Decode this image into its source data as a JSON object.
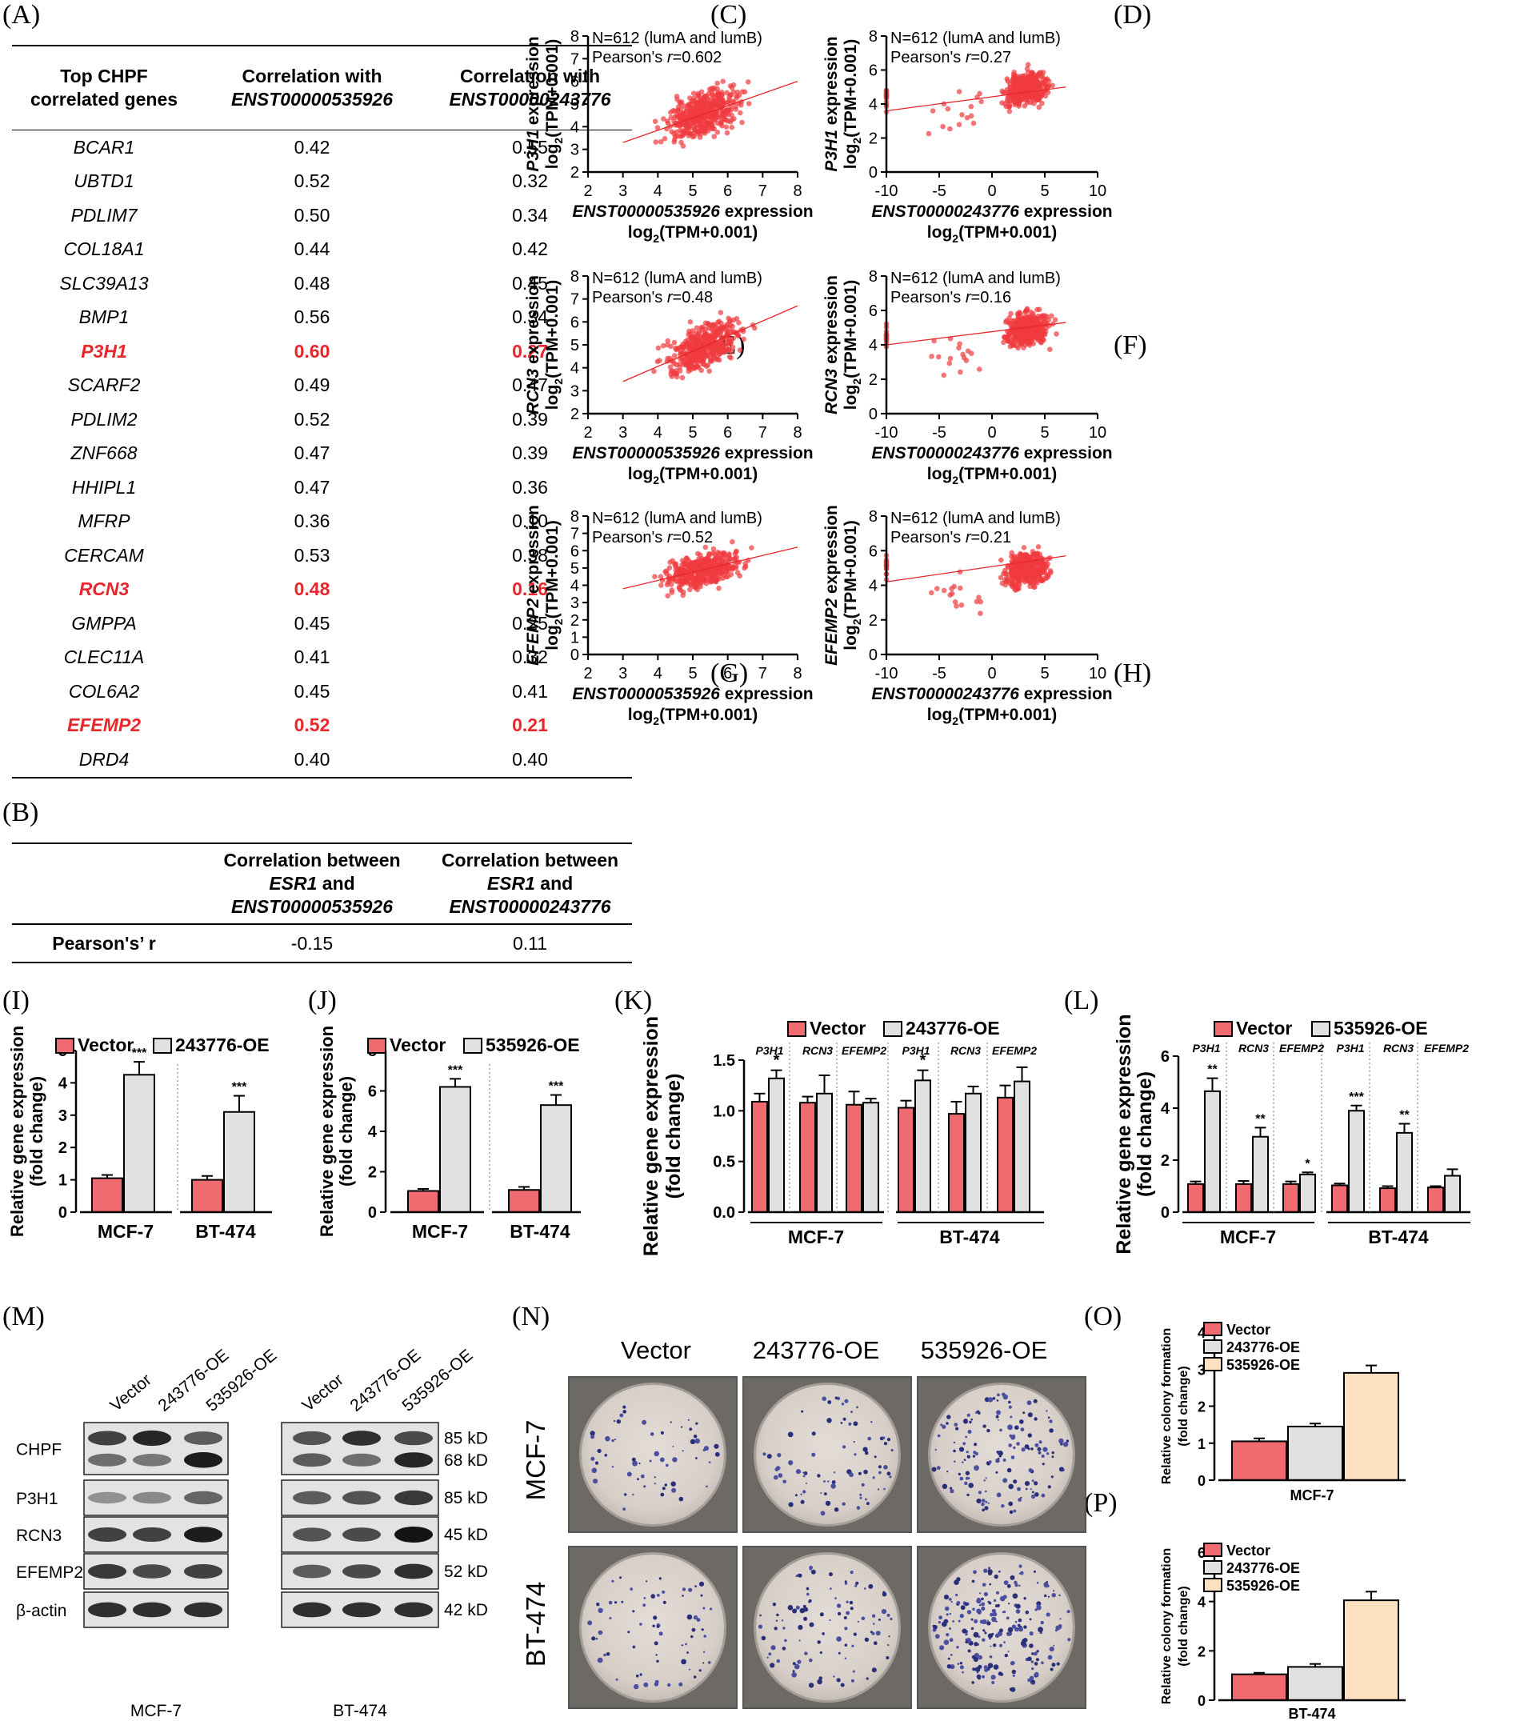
{
  "panels": {
    "A": "(A)",
    "B": "(B)",
    "C": "(C)",
    "D": "(D)",
    "E": "(E)",
    "F": "(F)",
    "G": "(G)",
    "H": "(H)",
    "I": "(I)",
    "J": "(J)",
    "K": "(K)",
    "L": "(L)",
    "M": "(M)",
    "N": "(N)",
    "O": "(O)",
    "P": "(P)"
  },
  "tableA": {
    "h1a": "Top CHPF",
    "h1b": "correlated genes",
    "h2a": "Correlation with",
    "h2b": "ENST00000535926",
    "h3a": "Correlation with",
    "h3b": "ENST00000243776",
    "rows": [
      {
        "gene": "BCAR1",
        "c1": "0.42",
        "c2": "0.55",
        "hl": false
      },
      {
        "gene": "UBTD1",
        "c1": "0.52",
        "c2": "0.32",
        "hl": false
      },
      {
        "gene": "PDLIM7",
        "c1": "0.50",
        "c2": "0.34",
        "hl": false
      },
      {
        "gene": "COL18A1",
        "c1": "0.44",
        "c2": "0.42",
        "hl": false
      },
      {
        "gene": "SLC39A13",
        "c1": "0.48",
        "c2": "0.45",
        "hl": false
      },
      {
        "gene": "BMP1",
        "c1": "0.56",
        "c2": "0.34",
        "hl": false
      },
      {
        "gene": "P3H1",
        "c1": "0.60",
        "c2": "0.27",
        "hl": true
      },
      {
        "gene": "SCARF2",
        "c1": "0.49",
        "c2": "0.47",
        "hl": false
      },
      {
        "gene": "PDLIM2",
        "c1": "0.52",
        "c2": "0.39",
        "hl": false
      },
      {
        "gene": "ZNF668",
        "c1": "0.47",
        "c2": "0.39",
        "hl": false
      },
      {
        "gene": "HHIPL1",
        "c1": "0.47",
        "c2": "0.36",
        "hl": false
      },
      {
        "gene": "MFRP",
        "c1": "0.36",
        "c2": "0.10",
        "hl": false
      },
      {
        "gene": "CERCAM",
        "c1": "0.53",
        "c2": "0.38",
        "hl": false
      },
      {
        "gene": "RCN3",
        "c1": "0.48",
        "c2": "0.16",
        "hl": true
      },
      {
        "gene": "GMPPA",
        "c1": "0.45",
        "c2": "0.25",
        "hl": false
      },
      {
        "gene": "CLEC11A",
        "c1": "0.41",
        "c2": "0.32",
        "hl": false
      },
      {
        "gene": "COL6A2",
        "c1": "0.45",
        "c2": "0.41",
        "hl": false
      },
      {
        "gene": "EFEMP2",
        "c1": "0.52",
        "c2": "0.21",
        "hl": true
      },
      {
        "gene": "DRD4",
        "c1": "0.40",
        "c2": "0.40",
        "hl": false
      }
    ]
  },
  "tableB": {
    "h2a": "Correlation between",
    "h2b": "ESR1",
    "h2c": "and",
    "h2d": "ENST00000535926",
    "h3a": "Correlation between",
    "h3b": "ESR1",
    "h3c": "and",
    "h3d": "ENST00000243776",
    "rowlabel": "Pearson's’ r",
    "v1": "-0.15",
    "v2": "0.11"
  },
  "scatter": {
    "n_text": "N=612 (lumA and lumB)",
    "pearson_prefix": "Pearson's ",
    "r_prefix": "r",
    "xlabel_535926": "ENST00000535926",
    "xlabel_243776": "ENST00000243776",
    "xlabel_suffix": " expression",
    "log_label": "log2(TPM+0.001)",
    "ylabel_suffix": " expression"
  },
  "bars": {
    "ylabel1": "Relative gene expression",
    "ylabel2": "(fold change)",
    "vector": "Vector",
    "oe243776": "243776-OE",
    "oe535926": "535926-OE",
    "mcf7": "MCF-7",
    "bt474": "BT-474",
    "colony1": "Relative colony formation",
    "colony2": "(fold change)"
  },
  "blot": {
    "lanes": [
      "Vector",
      "243776-OE",
      "535926-OE",
      "Vector",
      "243776-OE",
      "535926-OE"
    ],
    "rows": [
      {
        "name": "CHPF",
        "kd": [
          "85 kD",
          "68 kD"
        ]
      },
      {
        "name": "P3H1",
        "kd": [
          "85 kD"
        ]
      },
      {
        "name": "RCN3",
        "kd": [
          "45 kD"
        ]
      },
      {
        "name": "EFEMP2",
        "kd": [
          "52 kD"
        ]
      },
      {
        "name": "β-actin",
        "kd": [
          "42 kD"
        ]
      }
    ],
    "cell1": "MCF-7",
    "cell2": "BT-474"
  },
  "colony": {
    "cols": [
      "Vector",
      "243776-OE",
      "535926-OE"
    ],
    "rows": [
      "MCF-7",
      "BT-474"
    ]
  },
  "colors": {
    "red": "#e8262b",
    "bar_red": "#f06b6f",
    "bar_grey": "#e1e1e1",
    "bar_peach": "#fde1bf",
    "scatter": "#ef3a3f"
  },
  "chart_data": [
    {
      "panel": "C",
      "type": "scatter",
      "title": "",
      "xlabel": "ENST00000535926 expression log2(TPM+0.001)",
      "ylabel": "P3H1 expression log2(TPM+0.001)",
      "xlim": [
        2,
        8
      ],
      "ylim": [
        2,
        8
      ],
      "n": 612,
      "r": 0.602,
      "fit": [
        [
          3,
          3.3
        ],
        [
          8,
          6.0
        ]
      ],
      "xticks": [
        2,
        3,
        4,
        5,
        6,
        7,
        8
      ],
      "yticks": [
        2,
        3,
        4,
        5,
        6,
        7,
        8
      ]
    },
    {
      "panel": "D",
      "type": "scatter",
      "xlabel": "ENST00000243776 expression log2(TPM+0.001)",
      "ylabel": "P3H1 expression log2(TPM+0.001)",
      "xlim": [
        -10,
        10
      ],
      "ylim": [
        0,
        8
      ],
      "n": 612,
      "r": 0.27,
      "fit": [
        [
          -10,
          3.6
        ],
        [
          7,
          5.0
        ]
      ],
      "xticks": [
        -10,
        -5,
        0,
        5,
        10
      ],
      "yticks": [
        0,
        2,
        4,
        6,
        8
      ]
    },
    {
      "panel": "E",
      "type": "scatter",
      "xlabel": "ENST00000535926 expression log2(TPM+0.001)",
      "ylabel": "RCN3 expression log2(TPM+0.001)",
      "xlim": [
        2,
        8
      ],
      "ylim": [
        2,
        8
      ],
      "n": 612,
      "r": 0.48,
      "fit": [
        [
          3,
          3.4
        ],
        [
          8,
          6.7
        ]
      ],
      "xticks": [
        2,
        3,
        4,
        5,
        6,
        7,
        8
      ],
      "yticks": [
        2,
        3,
        4,
        5,
        6,
        7,
        8
      ]
    },
    {
      "panel": "F",
      "type": "scatter",
      "xlabel": "ENST00000243776 expression log2(TPM+0.001)",
      "ylabel": "RCN3 expression log2(TPM+0.001)",
      "xlim": [
        -10,
        10
      ],
      "ylim": [
        0,
        8
      ],
      "n": 612,
      "r": 0.16,
      "fit": [
        [
          -10,
          4.0
        ],
        [
          7,
          5.3
        ]
      ],
      "xticks": [
        -10,
        -5,
        0,
        5,
        10
      ],
      "yticks": [
        0,
        2,
        4,
        6,
        8
      ]
    },
    {
      "panel": "G",
      "type": "scatter",
      "xlabel": "ENST00000535926 expression log2(TPM+0.001)",
      "ylabel": "EFEMP2 expression log2(TPM+0.001)",
      "xlim": [
        2,
        8
      ],
      "ylim": [
        0,
        8
      ],
      "n": 612,
      "r": 0.52,
      "fit": [
        [
          3,
          3.8
        ],
        [
          8,
          6.2
        ]
      ],
      "xticks": [
        2,
        3,
        4,
        5,
        6,
        7,
        8
      ],
      "yticks": [
        0,
        1,
        2,
        3,
        4,
        5,
        6,
        7,
        8
      ]
    },
    {
      "panel": "H",
      "type": "scatter",
      "xlabel": "ENST00000243776 expression log2(TPM+0.001)",
      "ylabel": "EFEMP2 expression log2(TPM+0.001)",
      "xlim": [
        -10,
        10
      ],
      "ylim": [
        0,
        8
      ],
      "n": 612,
      "r": 0.21,
      "fit": [
        [
          -10,
          4.2
        ],
        [
          7,
          5.7
        ]
      ],
      "xticks": [
        -10,
        -5,
        0,
        5,
        10
      ],
      "yticks": [
        0,
        2,
        4,
        6,
        8
      ]
    },
    {
      "panel": "I",
      "type": "bar",
      "categories": [
        "MCF-7",
        "BT-474"
      ],
      "ylim": [
        0,
        5
      ],
      "yticks": [
        0,
        1,
        2,
        3,
        4,
        5
      ],
      "series": [
        {
          "name": "Vector",
          "values": [
            1.05,
            1.0
          ],
          "err": [
            0.1,
            0.12
          ]
        },
        {
          "name": "243776-OE",
          "values": [
            4.25,
            3.1
          ],
          "err": [
            0.4,
            0.5
          ]
        }
      ],
      "sig": [
        "***",
        "***"
      ]
    },
    {
      "panel": "J",
      "type": "bar",
      "categories": [
        "MCF-7",
        "BT-474"
      ],
      "ylim": [
        0,
        8
      ],
      "yticks": [
        0,
        2,
        4,
        6,
        8
      ],
      "series": [
        {
          "name": "Vector",
          "values": [
            1.05,
            1.1
          ],
          "err": [
            0.1,
            0.15
          ]
        },
        {
          "name": "535926-OE",
          "values": [
            6.2,
            5.3
          ],
          "err": [
            0.4,
            0.5
          ]
        }
      ],
      "sig": [
        "***",
        "***"
      ]
    },
    {
      "panel": "K",
      "type": "bar",
      "groups": [
        "MCF-7",
        "BT-474"
      ],
      "categories": [
        "P3H1",
        "RCN3",
        "EFEMP2",
        "P3H1",
        "RCN3",
        "EFEMP2"
      ],
      "ylim": [
        0,
        1.5
      ],
      "yticks": [
        0.0,
        0.5,
        1.0,
        1.5
      ],
      "series": [
        {
          "name": "Vector",
          "values": [
            1.09,
            1.08,
            1.06,
            1.03,
            0.97,
            1.13
          ],
          "err": [
            0.08,
            0.06,
            0.13,
            0.07,
            0.12,
            0.12
          ]
        },
        {
          "name": "243776-OE",
          "values": [
            1.32,
            1.17,
            1.08,
            1.3,
            1.17,
            1.29
          ],
          "err": [
            0.08,
            0.18,
            0.04,
            0.1,
            0.07,
            0.14
          ]
        }
      ],
      "sig": [
        "*",
        "",
        "",
        "*",
        "",
        ""
      ]
    },
    {
      "panel": "L",
      "type": "bar",
      "groups": [
        "MCF-7",
        "BT-474"
      ],
      "categories": [
        "P3H1",
        "RCN3",
        "EFEMP2",
        "P3H1",
        "RCN3",
        "EFEMP2"
      ],
      "ylim": [
        0,
        6
      ],
      "yticks": [
        0,
        2,
        4,
        6
      ],
      "series": [
        {
          "name": "Vector",
          "values": [
            1.08,
            1.08,
            1.08,
            1.03,
            0.92,
            0.95
          ],
          "err": [
            0.1,
            0.12,
            0.1,
            0.07,
            0.08,
            0.05
          ]
        },
        {
          "name": "535926-OE",
          "values": [
            4.65,
            2.9,
            1.45,
            3.9,
            3.05,
            1.4
          ],
          "err": [
            0.5,
            0.35,
            0.08,
            0.2,
            0.35,
            0.25
          ]
        }
      ],
      "sig": [
        "**",
        "**",
        "*",
        "***",
        "**",
        ""
      ]
    },
    {
      "panel": "O",
      "type": "bar",
      "categories": [
        "MCF-7"
      ],
      "ylim": [
        0,
        4
      ],
      "yticks": [
        0,
        1,
        2,
        3,
        4
      ],
      "series": [
        {
          "name": "Vector",
          "values": [
            1.05
          ],
          "err": [
            0.08
          ]
        },
        {
          "name": "243776-OE",
          "values": [
            1.45
          ],
          "err": [
            0.08
          ]
        },
        {
          "name": "535926-OE",
          "values": [
            2.9
          ],
          "err": [
            0.2
          ]
        }
      ],
      "sig": [
        "",
        "*",
        "***, ##"
      ]
    },
    {
      "panel": "P",
      "type": "bar",
      "categories": [
        "BT-474"
      ],
      "ylim": [
        0,
        6
      ],
      "yticks": [
        0,
        2,
        4,
        6
      ],
      "series": [
        {
          "name": "Vector",
          "values": [
            1.05
          ],
          "err": [
            0.06
          ]
        },
        {
          "name": "243776-OE",
          "values": [
            1.35
          ],
          "err": [
            0.12
          ]
        },
        {
          "name": "535926-OE",
          "values": [
            4.05
          ],
          "err": [
            0.35
          ]
        }
      ],
      "sig": [
        "",
        "*",
        "***, ##"
      ]
    }
  ]
}
